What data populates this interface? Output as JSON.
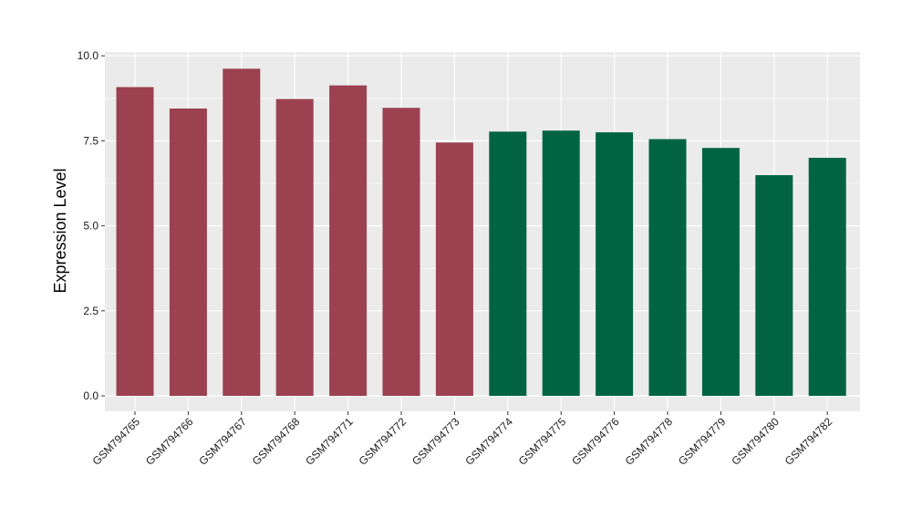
{
  "chart_data": {
    "type": "bar",
    "title": "",
    "xlabel": "",
    "ylabel": "Expression Level",
    "ylim": [
      0,
      10
    ],
    "yticks": [
      "0.0",
      "2.5",
      "5.0",
      "7.5",
      "10.0"
    ],
    "ytick_values": [
      0,
      2.5,
      5,
      7.5,
      10
    ],
    "grid": true,
    "legend": "none",
    "categories": [
      "GSM794765",
      "GSM794766",
      "GSM794767",
      "GSM794768",
      "GSM794771",
      "GSM794772",
      "GSM794773",
      "GSM794774",
      "GSM794775",
      "GSM794776",
      "GSM794778",
      "GSM794779",
      "GSM794780",
      "GSM794782"
    ],
    "values": [
      9.08,
      8.45,
      9.62,
      8.73,
      9.13,
      8.47,
      7.45,
      7.77,
      7.8,
      7.75,
      7.55,
      7.29,
      6.49,
      7.0
    ],
    "bar_colors": [
      "#9b4150",
      "#9b4150",
      "#9b4150",
      "#9b4150",
      "#9b4150",
      "#9b4150",
      "#9b4150",
      "#006443",
      "#006443",
      "#006443",
      "#006443",
      "#006443",
      "#006443",
      "#006443"
    ],
    "panel_background": "#ebebeb",
    "grid_color": "#ffffff"
  }
}
